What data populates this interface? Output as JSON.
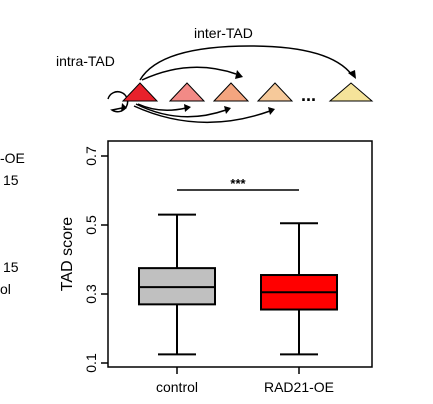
{
  "diagram": {
    "intra_label": "intra-TAD",
    "inter_label": "inter-TAD",
    "dots": "...",
    "triangle_colors": [
      "#e8212b",
      "#f28a86",
      "#f4a57f",
      "#f6c99a",
      "#f5e39a"
    ]
  },
  "side_text": [
    "-OE",
    "15",
    "15",
    "ol"
  ],
  "chart_data": {
    "type": "box",
    "title": "",
    "xlabel": "",
    "ylabel": "TAD score",
    "ylim": [
      0.1,
      0.7
    ],
    "yticks": [
      0.1,
      0.3,
      0.5,
      0.7
    ],
    "ytick_labels": [
      "0.1",
      "0.3",
      "0.5",
      "0.7"
    ],
    "grid": false,
    "categories": [
      "control",
      "RAD21-OE"
    ],
    "boxes": [
      {
        "name": "control",
        "whisker_low": 0.125,
        "q1": 0.27,
        "median": 0.32,
        "q3": 0.375,
        "whisker_high": 0.53,
        "color": "#c0c0c0"
      },
      {
        "name": "RAD21-OE",
        "whisker_low": 0.125,
        "q1": 0.255,
        "median": 0.305,
        "q3": 0.355,
        "whisker_high": 0.505,
        "color": "#ff0000"
      }
    ],
    "significance": {
      "label": "***",
      "between": [
        "control",
        "RAD21-OE"
      ]
    }
  }
}
